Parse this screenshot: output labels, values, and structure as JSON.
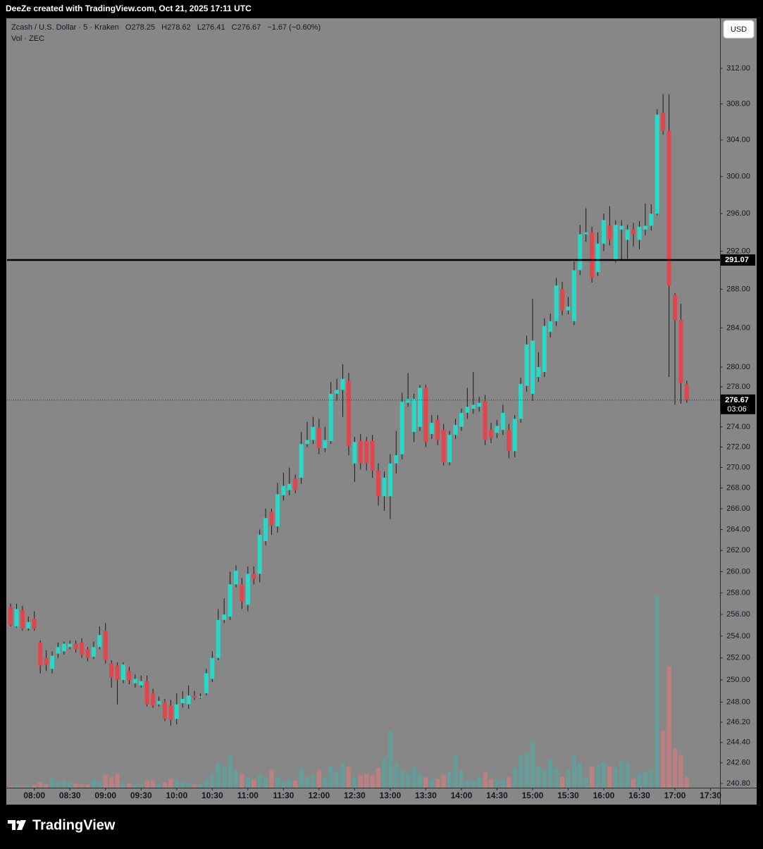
{
  "top_bar": "DeeZe created with TradingView.com, Oct 21, 2025 17:11 UTC",
  "currency_button": "USD",
  "brand": "TradingView",
  "chart_data": {
    "type": "candlestick",
    "title": "Zcash / U.S. Dollar · 5 · Kraken",
    "ohlc_legend": [
      "O278.25",
      "H278.62",
      "L276.41",
      "C276.67"
    ],
    "change": "−1.67 (−0.60%)",
    "log_scale": true,
    "grid": false,
    "background": "#878787",
    "up_color": "#2ad8c8",
    "down_color": "#e0474c",
    "wick_color": "#1a1a1a",
    "volume_up_color": "#5fa19d",
    "volume_down_color": "#c77f80",
    "x": [
      "07:40",
      "07:45",
      "07:50",
      "07:55",
      "08:00",
      "08:05",
      "08:10",
      "08:15",
      "08:20",
      "08:25",
      "08:30",
      "08:35",
      "08:40",
      "08:45",
      "08:50",
      "08:55",
      "09:00",
      "09:05",
      "09:10",
      "09:15",
      "09:20",
      "09:25",
      "09:30",
      "09:35",
      "09:40",
      "09:45",
      "09:50",
      "09:55",
      "10:00",
      "10:05",
      "10:10",
      "10:15",
      "10:20",
      "10:25",
      "10:30",
      "10:35",
      "10:40",
      "10:45",
      "10:50",
      "10:55",
      "11:00",
      "11:05",
      "11:10",
      "11:15",
      "11:20",
      "11:25",
      "11:30",
      "11:35",
      "11:40",
      "11:45",
      "11:50",
      "11:55",
      "12:00",
      "12:05",
      "12:10",
      "12:15",
      "12:20",
      "12:25",
      "12:30",
      "12:35",
      "12:40",
      "12:45",
      "12:50",
      "12:55",
      "13:00",
      "13:05",
      "13:10",
      "13:15",
      "13:20",
      "13:25",
      "13:30",
      "13:35",
      "13:40",
      "13:45",
      "13:50",
      "13:55",
      "14:00",
      "14:05",
      "14:10",
      "14:15",
      "14:20",
      "14:25",
      "14:30",
      "14:35",
      "14:40",
      "14:45",
      "14:50",
      "14:55",
      "15:00",
      "15:05",
      "15:10",
      "15:15",
      "15:20",
      "15:25",
      "15:30",
      "15:35",
      "15:40",
      "15:45",
      "15:50",
      "15:55",
      "16:00",
      "16:05",
      "16:10",
      "16:15",
      "16:20",
      "16:25",
      "16:30",
      "16:35",
      "16:40",
      "16:45",
      "16:50",
      "16:55",
      "17:00",
      "17:05",
      "17:10"
    ],
    "open": [
      256.7,
      254.9,
      256.4,
      254.7,
      255.6,
      253.4,
      252.0,
      251.0,
      252.4,
      252.6,
      253.0,
      253.3,
      253.4,
      252.8,
      252.1,
      253.0,
      254.5,
      251.5,
      251.3,
      250.0,
      250.8,
      249.7,
      249.5,
      249.9,
      248.8,
      247.8,
      248.0,
      247.7,
      246.5,
      247.9,
      247.8,
      248.6,
      248.4,
      248.8,
      250.1,
      252.0,
      255.5,
      255.8,
      258.8,
      258.8,
      256.9,
      259.8,
      259.8,
      262.9,
      265.7,
      264.3,
      267.3,
      267.8,
      268.9,
      269.0,
      272.3,
      272.7,
      273.9,
      271.9,
      272.6,
      277.3,
      277.7,
      278.6,
      270.4,
      272.6,
      272.6,
      272.6,
      269.7,
      267.2,
      267.2,
      270.4,
      271.3,
      276.4,
      273.5,
      274.0,
      277.9,
      273.3,
      274.7,
      273.7,
      270.5,
      273.2,
      274.0,
      275.4,
      275.8,
      276.0,
      276.6,
      273.7,
      273.4,
      273.7,
      273.7,
      271.6,
      274.8,
      278.1,
      277.3,
      279.0,
      279.5,
      283.6,
      284.7,
      288.0,
      285.8,
      284.7,
      290.0,
      293.8,
      294.0,
      289.8,
      292.8,
      294.7,
      291.0,
      294.3,
      293.2,
      294.3,
      293.2,
      294.3,
      294.7,
      296.0,
      307.0,
      305.0,
      287.4,
      284.8,
      278.25
    ],
    "high": [
      257.0,
      257.0,
      256.8,
      255.8,
      256.3,
      253.6,
      252.7,
      252.6,
      253.4,
      253.5,
      253.6,
      253.6,
      253.8,
      253.0,
      253.5,
      254.9,
      255.2,
      251.8,
      251.6,
      251.6,
      251.2,
      250.5,
      250.4,
      250.4,
      249.2,
      248.5,
      248.3,
      248.2,
      248.8,
      249.0,
      249.5,
      249.0,
      248.8,
      251.0,
      252.6,
      256.5,
      257.5,
      260.0,
      260.6,
      259.4,
      260.5,
      260.5,
      264.0,
      266.0,
      266.0,
      268.5,
      269.5,
      270.0,
      269.3,
      273.5,
      274.5,
      275.0,
      274.8,
      274.0,
      278.5,
      278.8,
      280.3,
      279.4,
      273.0,
      273.3,
      273.0,
      273.2,
      270.4,
      269.6,
      271.3,
      273.6,
      277.4,
      279.4,
      277.3,
      278.2,
      278.2,
      275.2,
      275.2,
      274.3,
      273.6,
      274.8,
      275.8,
      277.9,
      279.5,
      277.0,
      277.2,
      274.4,
      274.7,
      276.2,
      274.3,
      275.2,
      278.9,
      283.2,
      287.0,
      281.5,
      285.0,
      285.5,
      289.2,
      288.8,
      287.2,
      290.9,
      294.8,
      296.6,
      294.6,
      294.0,
      296.0,
      296.8,
      295.3,
      295.3,
      294.8,
      295.0,
      295.2,
      297.1,
      297.0,
      307.4,
      309.1,
      309.1,
      287.6,
      286.5,
      278.62
    ],
    "low": [
      254.9,
      254.8,
      254.5,
      254.5,
      254.5,
      250.6,
      250.8,
      250.6,
      252.0,
      252.3,
      252.8,
      252.5,
      252.0,
      251.7,
      251.9,
      252.8,
      251.5,
      249.3,
      247.8,
      249.7,
      249.6,
      249.3,
      249.3,
      247.6,
      247.5,
      247.6,
      246.3,
      245.9,
      246.0,
      247.5,
      247.4,
      248.2,
      248.3,
      248.6,
      249.8,
      251.8,
      255.2,
      255.5,
      258.5,
      256.5,
      256.3,
      258.8,
      259.0,
      262.5,
      263.5,
      263.7,
      266.8,
      267.3,
      267.5,
      268.4,
      272.0,
      272.3,
      271.3,
      271.5,
      272.3,
      276.6,
      275.0,
      271.2,
      268.6,
      269.8,
      269.7,
      269.0,
      266.3,
      265.8,
      265.0,
      269.4,
      270.8,
      276.0,
      272.5,
      273.6,
      272.0,
      272.8,
      272.2,
      270.2,
      270.2,
      272.8,
      273.6,
      274.8,
      275.3,
      275.5,
      272.2,
      272.4,
      272.9,
      273.2,
      270.9,
      271.0,
      274.4,
      277.5,
      276.6,
      278.5,
      279.0,
      283.0,
      284.2,
      285.3,
      285.4,
      284.3,
      289.5,
      293.0,
      288.7,
      289.4,
      292.0,
      292.6,
      290.8,
      291.0,
      291.2,
      292.5,
      292.2,
      293.7,
      294.2,
      295.8,
      304.6,
      279.0,
      276.2,
      276.3,
      276.41
    ],
    "close": [
      255.0,
      256.5,
      254.7,
      255.3,
      254.7,
      251.3,
      251.4,
      252.2,
      253.0,
      253.3,
      253.3,
      252.8,
      252.3,
      252.0,
      253.0,
      254.1,
      251.8,
      250.2,
      250.0,
      251.4,
      250.0,
      250.1,
      249.9,
      247.8,
      247.7,
      248.1,
      246.5,
      246.4,
      247.8,
      248.3,
      248.6,
      248.4,
      248.5,
      250.6,
      252.0,
      255.5,
      256.0,
      258.8,
      260.1,
      257.2,
      259.8,
      259.3,
      263.5,
      265.1,
      264.4,
      267.4,
      268.2,
      268.4,
      267.8,
      272.3,
      272.7,
      274.0,
      271.9,
      272.7,
      277.3,
      277.7,
      278.8,
      272.1,
      272.5,
      270.4,
      270.4,
      269.7,
      267.2,
      269.0,
      270.4,
      271.2,
      276.5,
      276.8,
      276.8,
      277.9,
      272.5,
      274.4,
      272.7,
      270.5,
      273.2,
      274.2,
      275.4,
      276.0,
      276.2,
      276.4,
      272.7,
      272.9,
      274.1,
      275.4,
      271.6,
      274.8,
      278.3,
      282.3,
      282.7,
      280.0,
      284.2,
      284.7,
      288.4,
      285.8,
      286.2,
      290.0,
      293.8,
      294.0,
      289.2,
      292.8,
      295.3,
      293.2,
      294.8,
      294.7,
      294.3,
      293.8,
      294.6,
      294.7,
      296.0,
      306.8,
      305.0,
      288.4,
      284.8,
      278.4,
      276.67
    ],
    "volume": {
      "name": "Vol · ZEC",
      "values": [
        2,
        3,
        2,
        2,
        4,
        8,
        5,
        15,
        8,
        10,
        8,
        6,
        5,
        5,
        12,
        8,
        18,
        15,
        20,
        8,
        6,
        5,
        5,
        10,
        10,
        6,
        8,
        12,
        10,
        8,
        6,
        5,
        5,
        12,
        20,
        35,
        30,
        45,
        25,
        20,
        15,
        12,
        18,
        15,
        25,
        15,
        8,
        12,
        10,
        28,
        15,
        18,
        25,
        15,
        30,
        22,
        35,
        30,
        15,
        18,
        20,
        18,
        28,
        40,
        80,
        35,
        25,
        20,
        30,
        20,
        15,
        12,
        12,
        18,
        22,
        45,
        25,
        10,
        10,
        15,
        22,
        12,
        10,
        12,
        15,
        28,
        45,
        50,
        65,
        30,
        25,
        40,
        28,
        15,
        25,
        45,
        35,
        15,
        30,
        32,
        35,
        30,
        28,
        38,
        35,
        12,
        20,
        22,
        25,
        270,
        80,
        170,
        55,
        45,
        15
      ]
    },
    "hline": {
      "value": 291.07,
      "color": "#000000"
    },
    "countdown": "03:06",
    "xlim": [
      "07:37",
      "17:38"
    ],
    "xticks": [
      "08:00",
      "08:30",
      "09:00",
      "09:30",
      "10:00",
      "10:30",
      "11:00",
      "11:30",
      "12:00",
      "12:30",
      "13:00",
      "13:30",
      "14:00",
      "14:30",
      "15:00",
      "15:30",
      "16:00",
      "16:30",
      "17:00",
      "17:30"
    ],
    "ylim": [
      240.43,
      317.7
    ],
    "yticks": [
      {
        "value": 312,
        "label": "312.00"
      },
      {
        "value": 308,
        "label": "308.00"
      },
      {
        "value": 304,
        "label": "304.00"
      },
      {
        "value": 300,
        "label": "300.00"
      },
      {
        "value": 296,
        "label": "296.00"
      },
      {
        "value": 292,
        "label": "292.00"
      },
      {
        "value": 288,
        "label": "288.00"
      },
      {
        "value": 284,
        "label": "284.00"
      },
      {
        "value": 280,
        "label": "280.00"
      },
      {
        "value": 278,
        "label": "278.00"
      },
      {
        "value": 274,
        "label": "274.00"
      },
      {
        "value": 272,
        "label": "272.00"
      },
      {
        "value": 270,
        "label": "270.00"
      },
      {
        "value": 268,
        "label": "268.00"
      },
      {
        "value": 266,
        "label": "266.00"
      },
      {
        "value": 264,
        "label": "264.00"
      },
      {
        "value": 262,
        "label": "262.00"
      },
      {
        "value": 260,
        "label": "260.00"
      },
      {
        "value": 258,
        "label": "258.00"
      },
      {
        "value": 256,
        "label": "256.00"
      },
      {
        "value": 254,
        "label": "254.00"
      },
      {
        "value": 252,
        "label": "252.00"
      },
      {
        "value": 250,
        "label": "250.00"
      },
      {
        "value": 248,
        "label": "248.00"
      },
      {
        "value": 246.2,
        "label": "246.20"
      },
      {
        "value": 244.4,
        "label": "244.40"
      },
      {
        "value": 242.6,
        "label": "242.60"
      },
      {
        "value": 240.8,
        "label": "240.80"
      }
    ]
  }
}
